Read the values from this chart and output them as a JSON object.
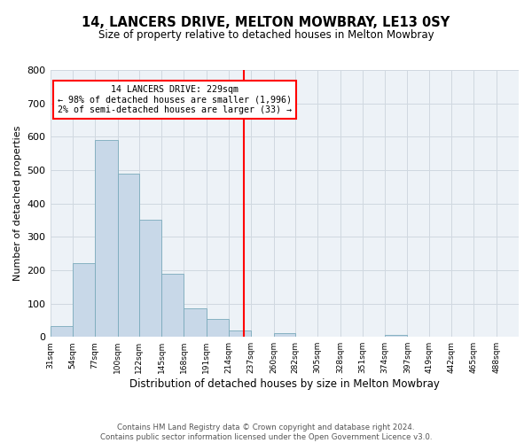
{
  "title": "14, LANCERS DRIVE, MELTON MOWBRAY, LE13 0SY",
  "subtitle": "Size of property relative to detached houses in Melton Mowbray",
  "xlabel": "Distribution of detached houses by size in Melton Mowbray",
  "ylabel": "Number of detached properties",
  "footer_line1": "Contains HM Land Registry data © Crown copyright and database right 2024.",
  "footer_line2": "Contains public sector information licensed under the Open Government Licence v3.0.",
  "bar_left_edges": [
    31,
    54,
    77,
    100,
    122,
    145,
    168,
    191,
    214,
    237,
    260,
    282,
    305,
    328,
    351,
    374,
    397,
    419,
    442,
    465
  ],
  "bar_heights": [
    33,
    220,
    590,
    490,
    350,
    190,
    85,
    53,
    18,
    0,
    10,
    0,
    0,
    0,
    0,
    5,
    0,
    0,
    0,
    0
  ],
  "bar_widths": [
    23,
    23,
    23,
    22,
    23,
    23,
    23,
    23,
    23,
    23,
    22,
    23,
    23,
    23,
    23,
    23,
    22,
    23,
    23,
    23
  ],
  "tick_labels": [
    "31sqm",
    "54sqm",
    "77sqm",
    "100sqm",
    "122sqm",
    "145sqm",
    "168sqm",
    "191sqm",
    "214sqm",
    "237sqm",
    "260sqm",
    "282sqm",
    "305sqm",
    "328sqm",
    "351sqm",
    "374sqm",
    "397sqm",
    "419sqm",
    "442sqm",
    "465sqm",
    "488sqm"
  ],
  "tick_positions": [
    31,
    54,
    77,
    100,
    122,
    145,
    168,
    191,
    214,
    237,
    260,
    282,
    305,
    328,
    351,
    374,
    397,
    419,
    442,
    465,
    488
  ],
  "bar_color": "#c8d8e8",
  "bar_edge_color": "#7aaabb",
  "grid_color": "#d0d8e0",
  "background_color": "#edf2f7",
  "vline_x": 229,
  "vline_color": "red",
  "annotation_line1": "14 LANCERS DRIVE: 229sqm",
  "annotation_line2": "← 98% of detached houses are smaller (1,996)",
  "annotation_line3": "2% of semi-detached houses are larger (33) →",
  "ylim": [
    0,
    800
  ],
  "yticks": [
    0,
    100,
    200,
    300,
    400,
    500,
    600,
    700,
    800
  ],
  "xlim": [
    31,
    511
  ]
}
